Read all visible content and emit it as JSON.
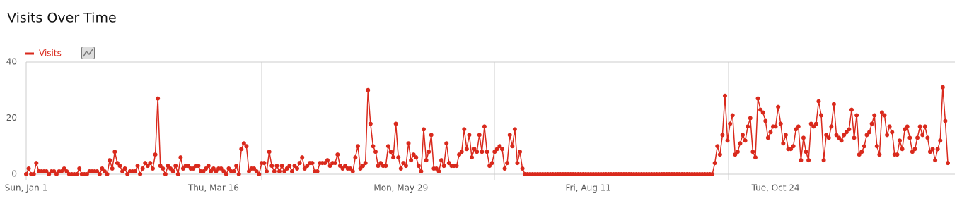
{
  "chart_data": {
    "type": "line",
    "title": "Visits Over Time",
    "categories": [
      "Sun, Jan 1",
      null,
      null,
      null,
      null,
      null,
      null,
      null,
      null,
      null,
      null,
      null,
      null,
      null,
      null,
      null,
      null,
      null,
      null,
      null,
      null,
      null,
      null,
      null,
      null,
      null,
      null,
      null,
      null,
      null,
      null,
      null,
      null,
      null,
      null,
      null,
      null,
      null,
      null,
      null,
      null,
      null,
      null,
      null,
      null,
      null,
      null,
      null,
      null,
      null,
      null,
      null,
      null,
      null,
      null,
      null,
      null,
      null,
      null,
      null,
      null,
      null,
      null,
      null,
      null,
      null,
      null,
      null,
      null,
      null,
      null,
      null,
      null,
      null,
      "Thu, Mar 16",
      null,
      null,
      null,
      null,
      null,
      null,
      null,
      null,
      null,
      null,
      null,
      null,
      null,
      null,
      null,
      null,
      null,
      null,
      null,
      null,
      null,
      null,
      null,
      null,
      null,
      null,
      null,
      null,
      null,
      null,
      null,
      null,
      null,
      null,
      null,
      null,
      null,
      null,
      null,
      null,
      null,
      null,
      null,
      null,
      null,
      null,
      null,
      null,
      null,
      null,
      null,
      null,
      null,
      null,
      null,
      null,
      null,
      null,
      null,
      null,
      null,
      null,
      null,
      null,
      null,
      null,
      null,
      null,
      null,
      null,
      null,
      null,
      null,
      "Mon, May 29",
      null,
      null,
      null,
      null,
      null,
      null,
      null,
      null,
      null,
      null,
      null,
      null,
      null,
      null,
      null,
      null,
      null,
      null,
      null,
      null,
      null,
      null,
      null,
      null,
      null,
      null,
      null,
      null,
      null,
      null,
      null,
      null,
      null,
      null,
      null,
      null,
      null,
      null,
      null,
      null,
      null,
      null,
      null,
      null,
      null,
      null,
      null,
      null,
      null,
      null,
      null,
      null,
      null,
      null,
      null,
      null,
      null,
      null,
      null,
      null,
      null,
      null,
      null,
      null,
      null,
      null,
      null,
      null,
      null,
      null,
      null,
      null,
      null,
      "Fri, Aug 11",
      null,
      null,
      null,
      null,
      null,
      null,
      null,
      null,
      null,
      null,
      null,
      null,
      null,
      null,
      null,
      null,
      null,
      null,
      null,
      null,
      null,
      null,
      null,
      null,
      null,
      null,
      null,
      null,
      null,
      null,
      null,
      null,
      null,
      null,
      null,
      null,
      null,
      null,
      null,
      null,
      null,
      null,
      null,
      null,
      null,
      null,
      null,
      null,
      null,
      null,
      null,
      null,
      null,
      null,
      null,
      null,
      null,
      null,
      null,
      null,
      null,
      null,
      null,
      null,
      null,
      null,
      null,
      null,
      null,
      null,
      null,
      null,
      null,
      "Tue, Oct 24",
      null,
      null,
      null,
      null,
      null,
      null,
      null,
      null,
      null,
      null,
      null,
      null,
      null,
      null,
      null,
      null,
      null,
      null,
      null,
      null,
      null,
      null,
      null,
      null,
      null,
      null,
      null,
      null,
      null,
      null,
      null,
      null,
      null,
      null,
      null,
      null,
      null,
      null,
      null,
      null,
      null,
      null,
      null,
      null,
      null,
      null,
      null,
      null,
      null,
      null,
      null,
      null,
      null,
      null,
      null,
      null,
      null,
      null,
      null,
      null,
      null,
      null,
      null,
      null,
      null,
      null,
      null,
      null
    ],
    "series": [
      {
        "name": "Visits",
        "color": "#d9291c",
        "values": [
          0,
          2,
          0,
          0,
          4,
          1,
          1,
          1,
          1,
          0,
          1,
          1,
          0,
          1,
          1,
          2,
          1,
          0,
          0,
          0,
          0,
          2,
          0,
          0,
          0,
          1,
          1,
          1,
          1,
          0,
          2,
          1,
          0,
          5,
          2,
          8,
          4,
          3,
          1,
          2,
          0,
          1,
          1,
          1,
          3,
          0,
          2,
          4,
          3,
          4,
          2,
          7,
          27,
          3,
          2,
          0,
          3,
          2,
          1,
          3,
          0,
          6,
          2,
          3,
          3,
          2,
          2,
          3,
          3,
          1,
          1,
          2,
          3,
          1,
          2,
          1,
          2,
          2,
          1,
          0,
          2,
          1,
          1,
          3,
          0,
          9,
          11,
          10,
          1,
          2,
          2,
          1,
          0,
          4,
          4,
          1,
          8,
          3,
          1,
          3,
          1,
          3,
          1,
          2,
          3,
          1,
          3,
          2,
          4,
          6,
          2,
          3,
          4,
          4,
          1,
          1,
          4,
          4,
          4,
          5,
          3,
          4,
          4,
          7,
          3,
          2,
          3,
          2,
          2,
          1,
          6,
          10,
          2,
          3,
          4,
          30,
          18,
          10,
          8,
          3,
          4,
          3,
          3,
          10,
          8,
          6,
          18,
          6,
          2,
          4,
          3,
          11,
          5,
          7,
          6,
          3,
          1,
          16,
          5,
          8,
          14,
          2,
          2,
          1,
          5,
          3,
          11,
          4,
          3,
          3,
          3,
          7,
          8,
          16,
          9,
          14,
          6,
          9,
          8,
          14,
          8,
          17,
          8,
          3,
          4,
          8,
          9,
          10,
          9,
          2,
          4,
          14,
          10,
          16,
          4,
          8,
          2,
          0,
          0,
          0,
          0,
          0,
          0,
          0,
          0,
          0,
          0,
          0,
          0,
          0,
          0,
          0,
          0,
          0,
          0,
          0,
          0,
          0,
          0,
          0,
          0,
          0,
          0,
          0,
          0,
          0,
          0,
          0,
          0,
          0,
          0,
          0,
          0,
          0,
          0,
          0,
          0,
          0,
          0,
          0,
          0,
          0,
          0,
          0,
          0,
          0,
          0,
          0,
          0,
          0,
          0,
          0,
          0,
          0,
          0,
          0,
          0,
          0,
          0,
          0,
          0,
          0,
          0,
          0,
          0,
          0,
          0,
          0,
          0,
          0,
          0,
          0,
          4,
          10,
          7,
          14,
          28,
          12,
          18,
          21,
          7,
          8,
          11,
          14,
          12,
          17,
          20,
          8,
          6,
          27,
          23,
          22,
          19,
          13,
          15,
          17,
          17,
          24,
          18,
          11,
          14,
          9,
          9,
          10,
          16,
          17,
          5,
          13,
          8,
          5,
          18,
          17,
          18,
          26,
          21,
          5,
          14,
          13,
          17,
          25,
          14,
          13,
          12,
          14,
          15,
          16,
          23,
          13,
          21,
          7,
          8,
          10,
          14,
          15,
          18,
          21,
          10,
          7,
          22,
          21,
          14,
          17,
          15,
          7,
          7,
          12,
          9,
          16,
          17,
          13,
          8,
          9,
          13,
          17,
          14,
          17,
          13,
          8,
          9,
          5,
          9,
          12,
          31,
          19,
          4
        ]
      }
    ],
    "ylim": [
      0,
      40
    ],
    "yticks": [
      0,
      20,
      40
    ],
    "grid": true
  }
}
